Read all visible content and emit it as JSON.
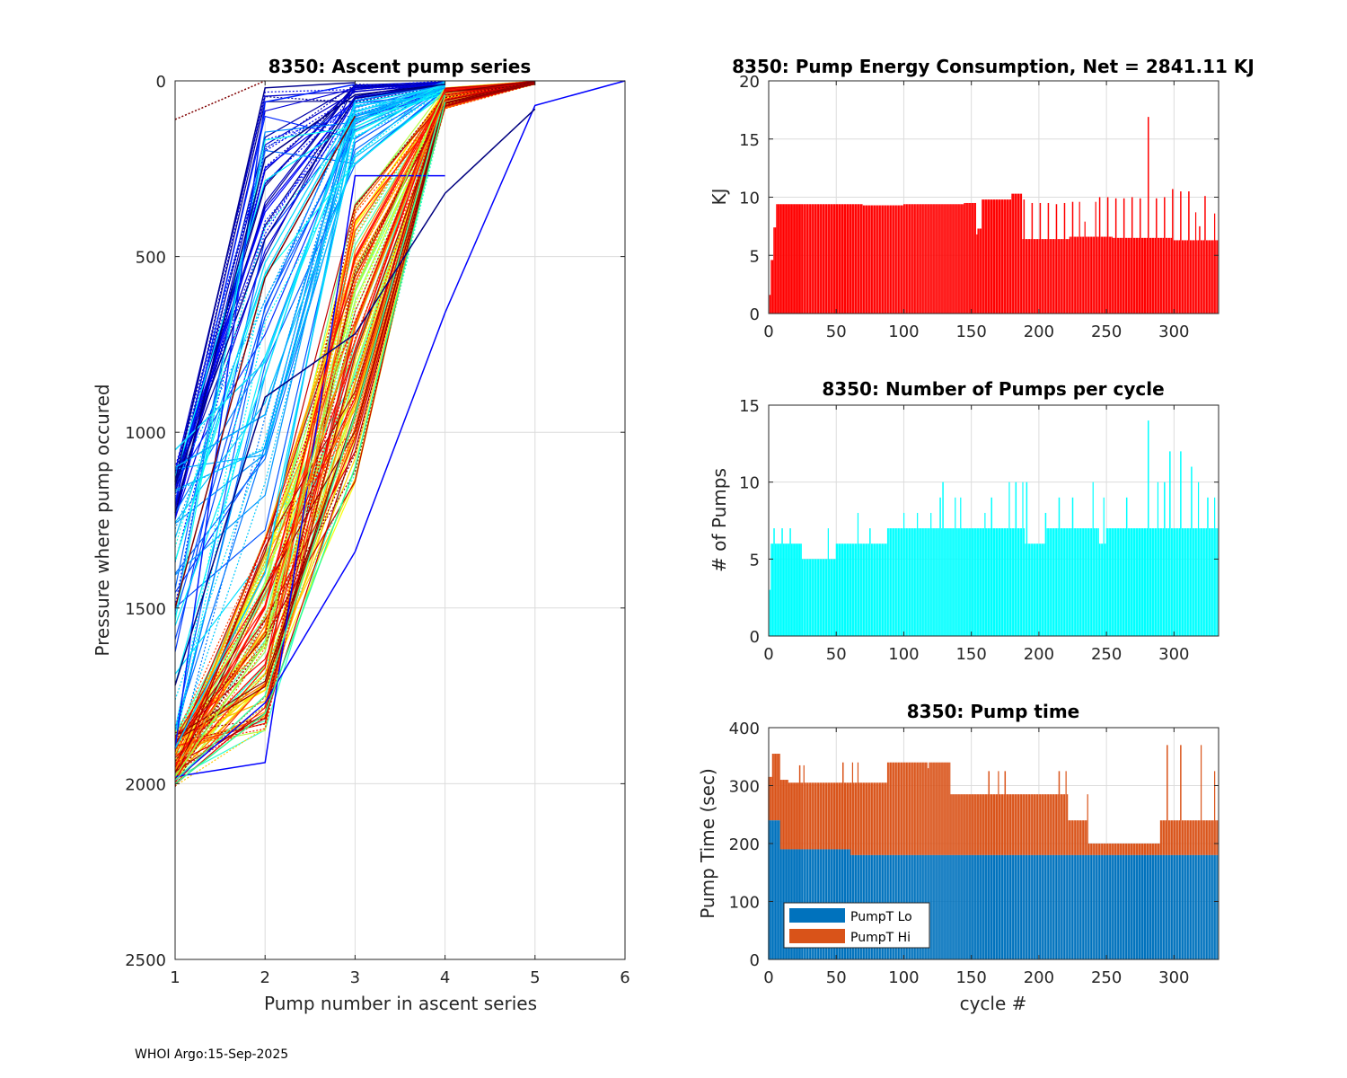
{
  "footer": "WHOI Argo:15-Sep-2025",
  "chart_data": [
    {
      "id": "ascent",
      "type": "line",
      "title": "8350: Ascent pump series",
      "xlabel": "Pump number in ascent series",
      "ylabel": "Pressure where pump occured",
      "xlim": [
        1,
        6
      ],
      "ylim": [
        0,
        2500
      ],
      "y_reversed": true,
      "xticks": [
        1,
        2,
        3,
        4,
        5,
        6
      ],
      "yticks": [
        0,
        500,
        1000,
        1500,
        2000,
        2500
      ],
      "grid": true,
      "colormap": "jet",
      "note": "One polyline per cycle; approximately 330 series drawn, colored by cycle with jet colormap (dark blue early cycles through red late cycles). Representative series listed.",
      "series": [
        {
          "name": "deep-dark-blue-1",
          "color": "#00008f",
          "x": [
            1,
            2,
            3,
            4
          ],
          "y": [
            1150,
            450,
            50,
            10
          ]
        },
        {
          "name": "deep-dark-blue-2",
          "color": "#00008f",
          "x": [
            1,
            2,
            3
          ],
          "y": [
            1140,
            20,
            5
          ]
        },
        {
          "name": "blue-1",
          "color": "#0000ff",
          "x": [
            1,
            2,
            3,
            4
          ],
          "y": [
            1980,
            1940,
            270,
            270
          ]
        },
        {
          "name": "blue-2",
          "color": "#0000ff",
          "x": [
            1,
            2,
            3,
            4,
            5,
            6
          ],
          "y": [
            1990,
            1770,
            1340,
            660,
            70,
            0
          ]
        },
        {
          "name": "blue-3",
          "color": "#0020ff",
          "x": [
            1,
            2,
            3
          ],
          "y": [
            1900,
            60,
            10
          ]
        },
        {
          "name": "light-blue-1",
          "color": "#00a8ff",
          "x": [
            1,
            2,
            3,
            4
          ],
          "y": [
            1100,
            950,
            100,
            20
          ]
        },
        {
          "name": "cyan-1",
          "color": "#10d8ff",
          "x": [
            1,
            2,
            3,
            4
          ],
          "y": [
            1050,
            800,
            90,
            10
          ]
        },
        {
          "name": "cyan-2",
          "color": "#00c8ff",
          "x": [
            1,
            2,
            3,
            4
          ],
          "y": [
            1900,
            1400,
            110,
            15
          ]
        },
        {
          "name": "green-1",
          "color": "#30ff90",
          "x": [
            1,
            2,
            3,
            4
          ],
          "y": [
            2000,
            1800,
            1100,
            60
          ]
        },
        {
          "name": "green-2",
          "color": "#40ffa0",
          "x": [
            1,
            2,
            3,
            4
          ],
          "y": [
            1990,
            1750,
            950,
            40
          ]
        },
        {
          "name": "yellow-green-1",
          "color": "#a0ff40",
          "x": [
            1,
            2,
            3,
            4
          ],
          "y": [
            1980,
            1600,
            600,
            30
          ]
        },
        {
          "name": "orange-1",
          "color": "#ff8000",
          "x": [
            1,
            2,
            3,
            4
          ],
          "y": [
            1960,
            1550,
            700,
            50
          ]
        },
        {
          "name": "red-1",
          "color": "#ff1000",
          "x": [
            1,
            2,
            3,
            4
          ],
          "y": [
            1950,
            1500,
            500,
            30
          ]
        },
        {
          "name": "dark-red-1",
          "color": "#800000",
          "x": [
            1,
            2,
            3
          ],
          "y": [
            1500,
            560,
            100
          ]
        },
        {
          "name": "dark-red-dotted",
          "color": "#800000",
          "dotted": true,
          "x": [
            1,
            2
          ],
          "y": [
            110,
            0
          ]
        },
        {
          "name": "navy-1",
          "color": "#000080",
          "x": [
            1,
            2,
            3,
            4,
            5
          ],
          "y": [
            1720,
            900,
            720,
            320,
            80
          ]
        },
        {
          "name": "navy-2",
          "color": "#000080",
          "x": [
            1,
            2,
            3,
            4
          ],
          "y": [
            1230,
            220,
            40,
            10
          ]
        }
      ]
    },
    {
      "id": "energy",
      "type": "bar",
      "title": "8350: Pump Energy Consumption,  Net = 2841.11 KJ",
      "xlabel": "",
      "ylabel": "KJ",
      "xlim": [
        0,
        333
      ],
      "ylim": [
        0,
        20
      ],
      "xticks": [
        0,
        50,
        100,
        150,
        200,
        250,
        300
      ],
      "yticks": [
        0,
        5,
        10,
        15,
        20
      ],
      "grid": true,
      "color": "#ff0000",
      "segments": [
        {
          "from": 1,
          "to": 2,
          "value": 1.6
        },
        {
          "from": 2,
          "to": 4,
          "value": 4.6
        },
        {
          "from": 4,
          "to": 6,
          "value": 7.4
        },
        {
          "from": 6,
          "to": 25,
          "value": 9.4
        },
        {
          "from": 25,
          "to": 70,
          "value": 9.4
        },
        {
          "from": 70,
          "to": 100,
          "value": 9.3
        },
        {
          "from": 100,
          "to": 145,
          "value": 9.4
        },
        {
          "from": 145,
          "to": 154,
          "value": 9.5
        },
        {
          "from": 154,
          "to": 155,
          "value": 6.8
        },
        {
          "from": 155,
          "to": 158,
          "value": 7.3
        },
        {
          "from": 158,
          "to": 180,
          "value": 9.8
        },
        {
          "from": 180,
          "to": 188,
          "value": 10.3
        },
        {
          "from": 188,
          "to": 223,
          "value": 6.4
        },
        {
          "from": 223,
          "to": 255,
          "value": 6.6
        },
        {
          "from": 255,
          "to": 300,
          "value": 6.5
        },
        {
          "from": 300,
          "to": 333,
          "value": 6.3
        }
      ],
      "spikes": [
        {
          "x": 189,
          "value": 9.8
        },
        {
          "x": 195,
          "value": 9.5
        },
        {
          "x": 201,
          "value": 9.5
        },
        {
          "x": 207,
          "value": 9.5
        },
        {
          "x": 213,
          "value": 9.4
        },
        {
          "x": 219,
          "value": 9.5
        },
        {
          "x": 225,
          "value": 9.6
        },
        {
          "x": 230,
          "value": 9.6
        },
        {
          "x": 234,
          "value": 7.9
        },
        {
          "x": 242,
          "value": 9.6
        },
        {
          "x": 245,
          "value": 10.0
        },
        {
          "x": 251,
          "value": 10.0
        },
        {
          "x": 257,
          "value": 9.9
        },
        {
          "x": 263,
          "value": 9.9
        },
        {
          "x": 269,
          "value": 10.0
        },
        {
          "x": 275,
          "value": 9.9
        },
        {
          "x": 281,
          "value": 16.9
        },
        {
          "x": 287,
          "value": 9.9
        },
        {
          "x": 293,
          "value": 10.0
        },
        {
          "x": 299,
          "value": 10.7
        },
        {
          "x": 305,
          "value": 10.5
        },
        {
          "x": 311,
          "value": 10.5
        },
        {
          "x": 316,
          "value": 8.7
        },
        {
          "x": 319,
          "value": 7.5
        },
        {
          "x": 323,
          "value": 10.1
        },
        {
          "x": 330,
          "value": 8.6
        }
      ]
    },
    {
      "id": "npumps",
      "type": "bar",
      "title": "8350: Number of Pumps per cycle",
      "xlabel": "",
      "ylabel": "# of Pumps",
      "xlim": [
        0,
        333
      ],
      "ylim": [
        0,
        15
      ],
      "xticks": [
        0,
        50,
        100,
        150,
        200,
        250,
        300
      ],
      "yticks": [
        0,
        5,
        10,
        15
      ],
      "grid": true,
      "color": "#00ffff",
      "segments": [
        {
          "from": 1,
          "to": 2,
          "value": 3
        },
        {
          "from": 2,
          "to": 8,
          "value": 6
        },
        {
          "from": 8,
          "to": 25,
          "value": 6
        },
        {
          "from": 25,
          "to": 50,
          "value": 5
        },
        {
          "from": 50,
          "to": 88,
          "value": 6
        },
        {
          "from": 88,
          "to": 125,
          "value": 7
        },
        {
          "from": 125,
          "to": 145,
          "value": 7
        },
        {
          "from": 145,
          "to": 190,
          "value": 7
        },
        {
          "from": 190,
          "to": 205,
          "value": 6
        },
        {
          "from": 205,
          "to": 245,
          "value": 7
        },
        {
          "from": 245,
          "to": 250,
          "value": 6
        },
        {
          "from": 250,
          "to": 295,
          "value": 7
        },
        {
          "from": 295,
          "to": 333,
          "value": 7
        }
      ],
      "spikes": [
        {
          "x": 4,
          "value": 7
        },
        {
          "x": 10,
          "value": 7
        },
        {
          "x": 16,
          "value": 7
        },
        {
          "x": 22,
          "value": 6
        },
        {
          "x": 44,
          "value": 7
        },
        {
          "x": 66,
          "value": 8
        },
        {
          "x": 75,
          "value": 7
        },
        {
          "x": 100,
          "value": 8
        },
        {
          "x": 110,
          "value": 8
        },
        {
          "x": 120,
          "value": 8
        },
        {
          "x": 127,
          "value": 9
        },
        {
          "x": 129,
          "value": 10
        },
        {
          "x": 138,
          "value": 9
        },
        {
          "x": 142,
          "value": 9
        },
        {
          "x": 160,
          "value": 8
        },
        {
          "x": 165,
          "value": 9
        },
        {
          "x": 178,
          "value": 10
        },
        {
          "x": 183,
          "value": 10
        },
        {
          "x": 188,
          "value": 10
        },
        {
          "x": 191,
          "value": 10
        },
        {
          "x": 205,
          "value": 8
        },
        {
          "x": 215,
          "value": 9
        },
        {
          "x": 225,
          "value": 9
        },
        {
          "x": 240,
          "value": 10
        },
        {
          "x": 248,
          "value": 9
        },
        {
          "x": 265,
          "value": 9
        },
        {
          "x": 281,
          "value": 14
        },
        {
          "x": 288,
          "value": 10
        },
        {
          "x": 293,
          "value": 10
        },
        {
          "x": 297,
          "value": 12
        },
        {
          "x": 305,
          "value": 12
        },
        {
          "x": 313,
          "value": 11
        },
        {
          "x": 318,
          "value": 10
        },
        {
          "x": 325,
          "value": 9
        },
        {
          "x": 330,
          "value": 9
        }
      ]
    },
    {
      "id": "pumptime",
      "type": "bar",
      "stacked": true,
      "title": "8350: Pump time",
      "xlabel": "cycle #",
      "ylabel": "Pump Time (sec)",
      "xlim": [
        0,
        333
      ],
      "ylim": [
        0,
        400
      ],
      "xticks": [
        0,
        50,
        100,
        150,
        200,
        250,
        300
      ],
      "yticks": [
        0,
        100,
        200,
        300,
        400
      ],
      "grid": true,
      "legend": {
        "position": "bottom-left",
        "entries": [
          {
            "label": "PumpT Lo",
            "color": "#0072bd"
          },
          {
            "label": "PumpT Hi",
            "color": "#d95319"
          }
        ]
      },
      "series": [
        {
          "name": "PumpT Lo",
          "color": "#0072bd",
          "segments": [
            {
              "from": 0,
              "to": 9,
              "value": 240
            },
            {
              "from": 9,
              "to": 61,
              "value": 190
            },
            {
              "from": 61,
              "to": 333,
              "value": 180
            }
          ]
        },
        {
          "name": "PumpT Hi",
          "color": "#d95319",
          "total_segments": [
            {
              "from": 0,
              "to": 3,
              "value": 315
            },
            {
              "from": 3,
              "to": 9,
              "value": 355
            },
            {
              "from": 9,
              "to": 15,
              "value": 310
            },
            {
              "from": 15,
              "to": 25,
              "value": 305
            },
            {
              "from": 25,
              "to": 70,
              "value": 305
            },
            {
              "from": 70,
              "to": 88,
              "value": 305
            },
            {
              "from": 88,
              "to": 100,
              "value": 340
            },
            {
              "from": 100,
              "to": 135,
              "value": 340
            },
            {
              "from": 135,
              "to": 145,
              "value": 285
            },
            {
              "from": 145,
              "to": 175,
              "value": 285
            },
            {
              "from": 175,
              "to": 222,
              "value": 285
            },
            {
              "from": 222,
              "to": 237,
              "value": 240
            },
            {
              "from": 237,
              "to": 290,
              "value": 200
            },
            {
              "from": 290,
              "to": 333,
              "value": 240
            }
          ],
          "spikes": [
            {
              "x": 23,
              "value": 335
            },
            {
              "x": 26,
              "value": 335
            },
            {
              "x": 55,
              "value": 340
            },
            {
              "x": 62,
              "value": 340
            },
            {
              "x": 66,
              "value": 340
            },
            {
              "x": 114,
              "value": 340
            },
            {
              "x": 118,
              "value": 330
            },
            {
              "x": 163,
              "value": 325
            },
            {
              "x": 170,
              "value": 325
            },
            {
              "x": 175,
              "value": 325
            },
            {
              "x": 215,
              "value": 325
            },
            {
              "x": 220,
              "value": 325
            },
            {
              "x": 236,
              "value": 285
            },
            {
              "x": 295,
              "value": 370
            },
            {
              "x": 305,
              "value": 370
            },
            {
              "x": 320,
              "value": 370
            },
            {
              "x": 330,
              "value": 325
            }
          ]
        }
      ]
    }
  ]
}
